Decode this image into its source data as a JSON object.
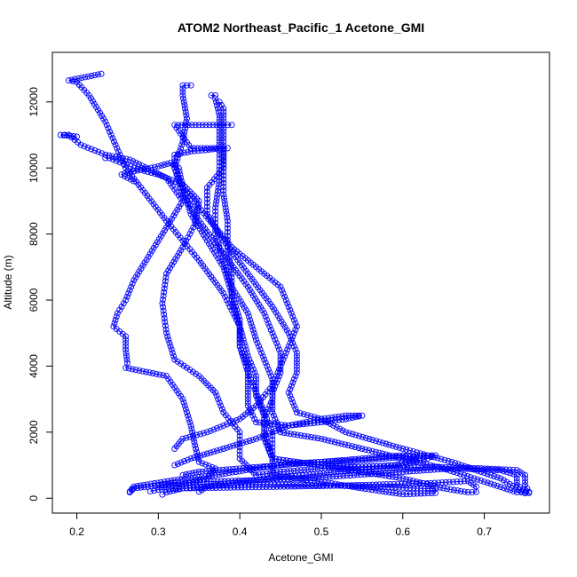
{
  "chart_data": {
    "type": "scatter",
    "title": "ATOM2 Northeast_Pacific_1 Acetone_GMI",
    "xlabel": "Acetone_GMI",
    "ylabel": "Altitude (m)",
    "xlim": [
      0.17,
      0.78
    ],
    "ylim": [
      -450,
      13500
    ],
    "x_ticks": [
      0.2,
      0.3,
      0.4,
      0.5,
      0.6,
      0.7
    ],
    "x_tick_labels": [
      "0.2",
      "0.3",
      "0.4",
      "0.5",
      "0.6",
      "0.7"
    ],
    "y_ticks": [
      0,
      2000,
      4000,
      6000,
      8000,
      10000,
      12000
    ],
    "y_tick_labels": [
      "0",
      "2000",
      "4000",
      "6000",
      "8000",
      "10000",
      "12000"
    ],
    "marker": "open-circle",
    "color": "#0000ff",
    "connected": true,
    "grid": false,
    "series": [
      {
        "profile": [
          [
            0.265,
            180
          ],
          [
            0.27,
            300
          ],
          [
            0.3,
            380
          ],
          [
            0.33,
            420
          ],
          [
            0.36,
            600
          ],
          [
            0.37,
            900
          ],
          [
            0.35,
            1100
          ],
          [
            0.345,
            1600
          ],
          [
            0.34,
            2200
          ],
          [
            0.33,
            3000
          ],
          [
            0.31,
            3700
          ],
          [
            0.26,
            3950
          ],
          [
            0.262,
            4100
          ],
          [
            0.26,
            4500
          ],
          [
            0.26,
            4900
          ],
          [
            0.245,
            5200
          ],
          [
            0.25,
            5600
          ],
          [
            0.26,
            6000
          ],
          [
            0.27,
            6600
          ],
          [
            0.29,
            7400
          ],
          [
            0.31,
            8200
          ],
          [
            0.33,
            9000
          ],
          [
            0.31,
            9700
          ],
          [
            0.265,
            10250
          ],
          [
            0.235,
            10400
          ],
          [
            0.205,
            10700
          ],
          [
            0.19,
            11000
          ],
          [
            0.18,
            11000
          ],
          [
            0.2,
            10950
          ]
        ]
      },
      {
        "profile": [
          [
            0.265,
            200
          ],
          [
            0.27,
            350
          ],
          [
            0.32,
            550
          ],
          [
            0.37,
            700
          ],
          [
            0.42,
            900
          ],
          [
            0.46,
            1050
          ],
          [
            0.5,
            1100
          ],
          [
            0.55,
            1150
          ],
          [
            0.6,
            1250
          ],
          [
            0.64,
            1300
          ],
          [
            0.63,
            1200
          ],
          [
            0.6,
            1000
          ],
          [
            0.55,
            950
          ],
          [
            0.5,
            900
          ],
          [
            0.45,
            800
          ],
          [
            0.42,
            700
          ],
          [
            0.4,
            1200
          ],
          [
            0.4,
            2000
          ],
          [
            0.38,
            2600
          ],
          [
            0.37,
            3200
          ],
          [
            0.35,
            3700
          ],
          [
            0.32,
            4200
          ],
          [
            0.31,
            5000
          ],
          [
            0.305,
            5900
          ],
          [
            0.31,
            6800
          ],
          [
            0.33,
            7600
          ],
          [
            0.345,
            8300
          ],
          [
            0.35,
            9000
          ],
          [
            0.33,
            9500
          ],
          [
            0.3,
            9800
          ],
          [
            0.27,
            10000
          ],
          [
            0.24,
            10300
          ],
          [
            0.235,
            10300
          ]
        ]
      },
      {
        "profile": [
          [
            0.305,
            110
          ],
          [
            0.31,
            180
          ],
          [
            0.33,
            300
          ],
          [
            0.37,
            380
          ],
          [
            0.42,
            420
          ],
          [
            0.47,
            400
          ],
          [
            0.52,
            380
          ],
          [
            0.56,
            350
          ],
          [
            0.6,
            320
          ],
          [
            0.64,
            280
          ],
          [
            0.64,
            160
          ],
          [
            0.6,
            120
          ],
          [
            0.55,
            300
          ],
          [
            0.5,
            500
          ],
          [
            0.44,
            700
          ],
          [
            0.44,
            1200
          ],
          [
            0.44,
            2000
          ],
          [
            0.43,
            2600
          ],
          [
            0.42,
            3200
          ],
          [
            0.41,
            3800
          ],
          [
            0.4,
            4600
          ],
          [
            0.4,
            5400
          ],
          [
            0.39,
            6200
          ],
          [
            0.38,
            7000
          ],
          [
            0.36,
            7800
          ],
          [
            0.34,
            8600
          ],
          [
            0.33,
            9400
          ],
          [
            0.325,
            10000
          ],
          [
            0.315,
            10150
          ],
          [
            0.3,
            10050
          ],
          [
            0.27,
            9900
          ],
          [
            0.255,
            9800
          ],
          [
            0.27,
            9600
          ]
        ]
      },
      {
        "profile": [
          [
            0.29,
            210
          ],
          [
            0.3,
            260
          ],
          [
            0.33,
            300
          ],
          [
            0.38,
            320
          ],
          [
            0.45,
            350
          ],
          [
            0.52,
            380
          ],
          [
            0.58,
            420
          ],
          [
            0.63,
            450
          ],
          [
            0.68,
            520
          ],
          [
            0.69,
            350
          ],
          [
            0.69,
            190
          ],
          [
            0.68,
            180
          ],
          [
            0.65,
            300
          ],
          [
            0.6,
            600
          ],
          [
            0.55,
            800
          ],
          [
            0.5,
            1000
          ],
          [
            0.44,
            1200
          ],
          [
            0.43,
            2000
          ],
          [
            0.43,
            2500
          ],
          [
            0.42,
            3100
          ],
          [
            0.42,
            3700
          ],
          [
            0.41,
            4300
          ],
          [
            0.4,
            5200
          ],
          [
            0.38,
            6200
          ],
          [
            0.35,
            7200
          ],
          [
            0.31,
            8400
          ],
          [
            0.26,
            10000
          ],
          [
            0.235,
            11400
          ],
          [
            0.215,
            12200
          ],
          [
            0.2,
            12600
          ],
          [
            0.19,
            12650
          ],
          [
            0.21,
            12750
          ],
          [
            0.23,
            12850
          ]
        ]
      },
      {
        "profile": [
          [
            0.35,
            200
          ],
          [
            0.36,
            350
          ],
          [
            0.4,
            500
          ],
          [
            0.46,
            650
          ],
          [
            0.52,
            800
          ],
          [
            0.58,
            900
          ],
          [
            0.64,
            950
          ],
          [
            0.7,
            900
          ],
          [
            0.74,
            850
          ],
          [
            0.75,
            700
          ],
          [
            0.75,
            400
          ],
          [
            0.755,
            190
          ],
          [
            0.74,
            180
          ],
          [
            0.7,
            500
          ],
          [
            0.65,
            900
          ],
          [
            0.6,
            1200
          ],
          [
            0.55,
            1500
          ],
          [
            0.5,
            1800
          ],
          [
            0.45,
            2000
          ],
          [
            0.44,
            2600
          ],
          [
            0.44,
            3200
          ],
          [
            0.45,
            3800
          ],
          [
            0.45,
            4400
          ],
          [
            0.44,
            5000
          ],
          [
            0.43,
            5600
          ],
          [
            0.41,
            6400
          ],
          [
            0.38,
            7400
          ],
          [
            0.35,
            8400
          ],
          [
            0.33,
            9200
          ],
          [
            0.32,
            10000
          ],
          [
            0.33,
            10800
          ],
          [
            0.335,
            11500
          ],
          [
            0.33,
            12200
          ],
          [
            0.33,
            12500
          ],
          [
            0.34,
            12500
          ]
        ]
      },
      {
        "profile": [
          [
            0.3,
            400
          ],
          [
            0.32,
            450
          ],
          [
            0.36,
            500
          ],
          [
            0.42,
            550
          ],
          [
            0.48,
            600
          ],
          [
            0.54,
            700
          ],
          [
            0.6,
            800
          ],
          [
            0.66,
            900
          ],
          [
            0.72,
            850
          ],
          [
            0.74,
            700
          ],
          [
            0.74,
            400
          ],
          [
            0.755,
            160
          ],
          [
            0.75,
            150
          ],
          [
            0.72,
            600
          ],
          [
            0.66,
            1100
          ],
          [
            0.6,
            1500
          ],
          [
            0.53,
            2000
          ],
          [
            0.5,
            2400
          ],
          [
            0.47,
            2600
          ],
          [
            0.46,
            3200
          ],
          [
            0.47,
            3800
          ],
          [
            0.47,
            4400
          ],
          [
            0.46,
            5000
          ],
          [
            0.44,
            5800
          ],
          [
            0.41,
            6800
          ],
          [
            0.38,
            7800
          ],
          [
            0.36,
            8600
          ],
          [
            0.36,
            9400
          ],
          [
            0.38,
            10000
          ],
          [
            0.38,
            10600
          ],
          [
            0.36,
            10600
          ],
          [
            0.34,
            10600
          ],
          [
            0.32,
            11300
          ],
          [
            0.38,
            11300
          ],
          [
            0.39,
            11300
          ]
        ]
      },
      {
        "profile": [
          [
            0.33,
            700
          ],
          [
            0.35,
            800
          ],
          [
            0.4,
            900
          ],
          [
            0.45,
            1000
          ],
          [
            0.5,
            1100
          ],
          [
            0.55,
            1200
          ],
          [
            0.6,
            1300
          ],
          [
            0.62,
            1200
          ],
          [
            0.59,
            1000
          ],
          [
            0.55,
            950
          ],
          [
            0.5,
            1000
          ],
          [
            0.44,
            1200
          ],
          [
            0.43,
            1800
          ],
          [
            0.43,
            2400
          ],
          [
            0.44,
            3000
          ],
          [
            0.44,
            3600
          ],
          [
            0.43,
            4200
          ],
          [
            0.42,
            4800
          ],
          [
            0.41,
            5600
          ],
          [
            0.39,
            6400
          ],
          [
            0.38,
            7200
          ],
          [
            0.37,
            8000
          ],
          [
            0.37,
            8800
          ],
          [
            0.375,
            9600
          ],
          [
            0.375,
            10400
          ],
          [
            0.375,
            11000
          ],
          [
            0.375,
            11600
          ],
          [
            0.37,
            12100
          ],
          [
            0.365,
            12200
          ],
          [
            0.37,
            12200
          ]
        ]
      },
      {
        "profile": [
          [
            0.32,
            1000
          ],
          [
            0.34,
            1200
          ],
          [
            0.38,
            1500
          ],
          [
            0.42,
            1800
          ],
          [
            0.46,
            2200
          ],
          [
            0.5,
            2400
          ],
          [
            0.53,
            2500
          ],
          [
            0.55,
            2500
          ],
          [
            0.53,
            2400
          ],
          [
            0.5,
            2300
          ],
          [
            0.46,
            2200
          ],
          [
            0.42,
            2300
          ],
          [
            0.41,
            2800
          ],
          [
            0.41,
            3400
          ],
          [
            0.41,
            4000
          ],
          [
            0.4,
            4600
          ],
          [
            0.4,
            5200
          ],
          [
            0.39,
            6000
          ],
          [
            0.39,
            6800
          ],
          [
            0.385,
            7600
          ],
          [
            0.385,
            8400
          ],
          [
            0.38,
            9200
          ],
          [
            0.38,
            10000
          ],
          [
            0.38,
            10800
          ],
          [
            0.38,
            11500
          ],
          [
            0.38,
            11800
          ],
          [
            0.375,
            12000
          ]
        ]
      },
      {
        "profile": [
          [
            0.32,
            1500
          ],
          [
            0.33,
            1800
          ],
          [
            0.36,
            2000
          ],
          [
            0.38,
            2200
          ],
          [
            0.4,
            2400
          ],
          [
            0.42,
            2800
          ],
          [
            0.44,
            3400
          ],
          [
            0.45,
            4000
          ],
          [
            0.46,
            4600
          ],
          [
            0.47,
            5200
          ],
          [
            0.46,
            5800
          ],
          [
            0.45,
            6400
          ],
          [
            0.42,
            7000
          ],
          [
            0.39,
            7600
          ],
          [
            0.37,
            8200
          ],
          [
            0.35,
            8800
          ],
          [
            0.33,
            9400
          ],
          [
            0.32,
            10000
          ],
          [
            0.32,
            10400
          ],
          [
            0.34,
            10500
          ],
          [
            0.38,
            10600
          ],
          [
            0.385,
            10600
          ]
        ]
      }
    ]
  }
}
